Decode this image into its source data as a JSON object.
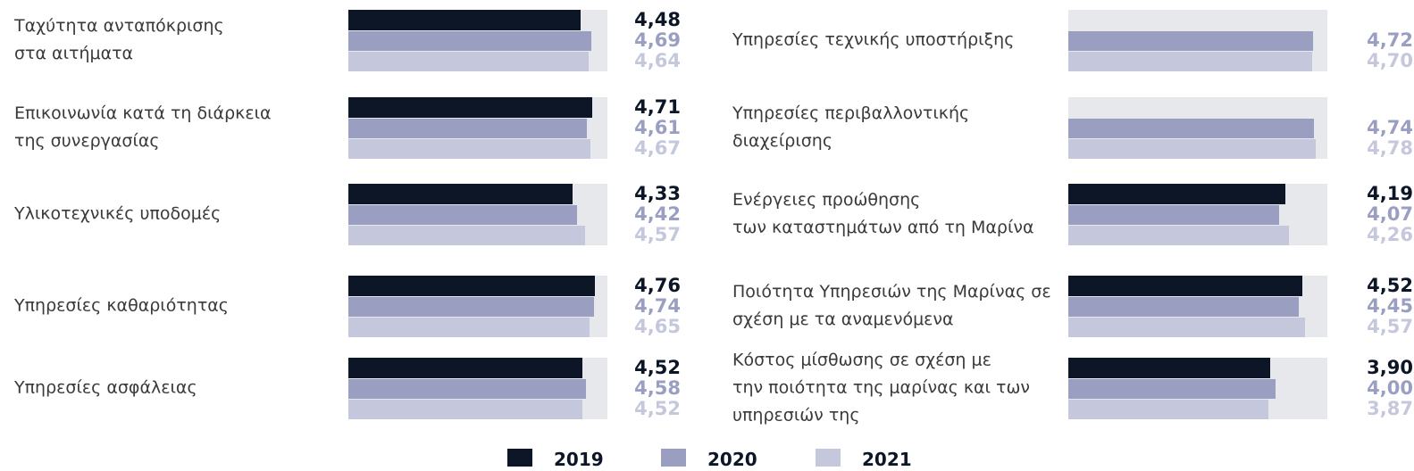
{
  "chart_data": {
    "type": "bar",
    "orientation": "horizontal",
    "categories": [
      "Ταχύτητα ανταπόκρισης\nστα αιτήματα",
      "Επικοινωνία κατά τη διάρκεια\nτης συνεργασίας",
      "Υλικοτεχνικές υποδομές",
      "Υπηρεσίες καθαριότητας",
      "Υπηρεσίες ασφάλειας",
      "Υπηρεσίες τεχνικής υποστήριξης",
      "Υπηρεσίες περιβαλλοντικής\nδιαχείρισης",
      "Ενέργειες προώθησης\nτων καταστημάτων από τη Μαρίνα",
      "Ποιότητα Υπηρεσιών της Μαρίνας σε\nσχέση με τα αναμενόμενα",
      "Κόστος μίσθωσης σε σχέση με\nτην ποιότητα της μαρίνας και των\nυπηρεσιών της"
    ],
    "xlim": [
      0,
      5
    ],
    "series": [
      {
        "name": "2019",
        "color": "#0d1626",
        "label_color": "#0d1626",
        "values": [
          4.48,
          4.71,
          4.33,
          4.76,
          4.52,
          null,
          null,
          4.19,
          4.52,
          3.9
        ],
        "value_labels": [
          "4,48",
          "4,71",
          "4,33",
          "4,76",
          "4,52",
          null,
          null,
          "4,19",
          "4,52",
          "3,90"
        ]
      },
      {
        "name": "2020",
        "color": "#9a9fc2",
        "label_color": "#9a9fc2",
        "values": [
          4.69,
          4.61,
          4.42,
          4.74,
          4.58,
          4.72,
          4.74,
          4.07,
          4.45,
          4.0
        ],
        "value_labels": [
          "4,69",
          "4,61",
          "4,42",
          "4,74",
          "4,58",
          "4,72",
          "4,74",
          "4,07",
          "4,45",
          "4,00"
        ]
      },
      {
        "name": "2021",
        "color": "#c5c8dc",
        "label_color": "#c5c8dc",
        "values": [
          4.64,
          4.67,
          4.57,
          4.65,
          4.52,
          4.7,
          4.78,
          4.26,
          4.57,
          3.87
        ],
        "value_labels": [
          "4,64",
          "4,67",
          "4,57",
          "4,65",
          "4,52",
          "4,70",
          "4,78",
          "4,26",
          "4,57",
          "3,87"
        ]
      }
    ]
  }
}
